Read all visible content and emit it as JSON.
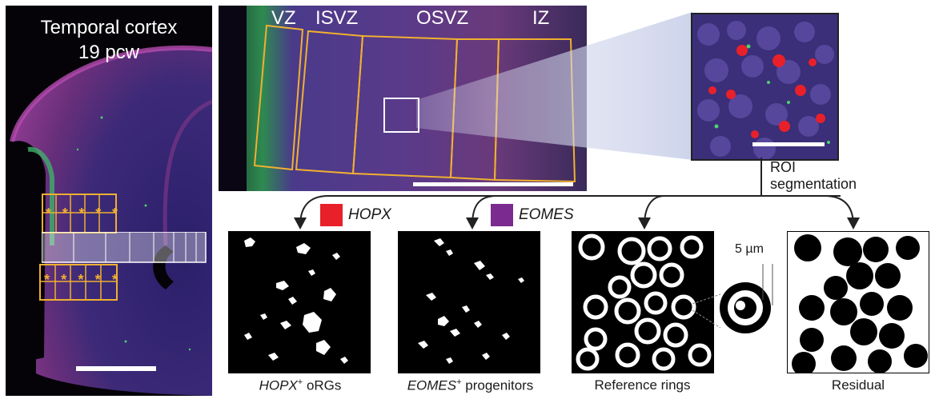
{
  "panel_a": {
    "title_line1": "Temporal cortex",
    "title_line2": "19 pcw",
    "star": "*"
  },
  "panel_b": {
    "zones": [
      "VZ",
      "ISVZ",
      "OSVZ",
      "IZ"
    ]
  },
  "panel_c": {
    "roi_label_line1": "ROI",
    "roi_label_line2": "segmentation"
  },
  "legend": {
    "hopx": {
      "label": "HOPX",
      "color": "#e8202a"
    },
    "eomes": {
      "label": "EOMES",
      "color": "#7b2a90"
    }
  },
  "masks": [
    {
      "gene": "HOPX",
      "sup": "+",
      "suffix": " oRGs"
    },
    {
      "gene": "EOMES",
      "sup": "+",
      "suffix": " progenitors"
    },
    {
      "gene": "",
      "sup": "",
      "suffix": "Reference rings"
    },
    {
      "gene": "",
      "sup": "",
      "suffix": "Residual"
    }
  ],
  "ring_inset": {
    "scale_label": "5 µm"
  },
  "colors": {
    "outline": "#f0b030",
    "arrow": "#222222",
    "tissue": "#2a1a4a"
  }
}
